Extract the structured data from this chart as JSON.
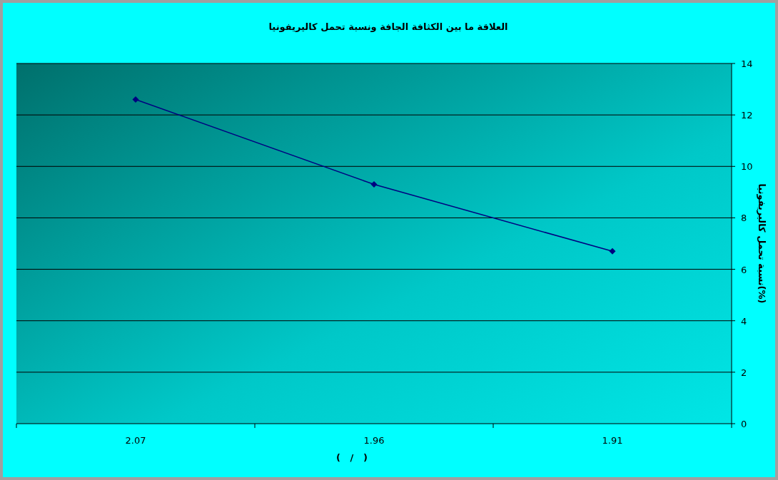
{
  "chart_data": {
    "type": "line",
    "title": "العلاقة ما بين الكثافة الجافة ونسبة تحمل كاليريفونيا",
    "xlabel": "(   /   )",
    "ylabel": "نسبة تحمل كاليريفونيا(%)",
    "categories": [
      "2.07",
      "1.96",
      "1.91"
    ],
    "series": [
      {
        "color": "#000080",
        "values": [
          12.6,
          9.3,
          6.7
        ]
      }
    ],
    "ylim": [
      0,
      14
    ],
    "yticks": [
      0,
      2,
      4,
      6,
      8,
      10,
      12,
      14
    ],
    "grid": "y",
    "marker": "diamond",
    "line_style": "solid"
  }
}
